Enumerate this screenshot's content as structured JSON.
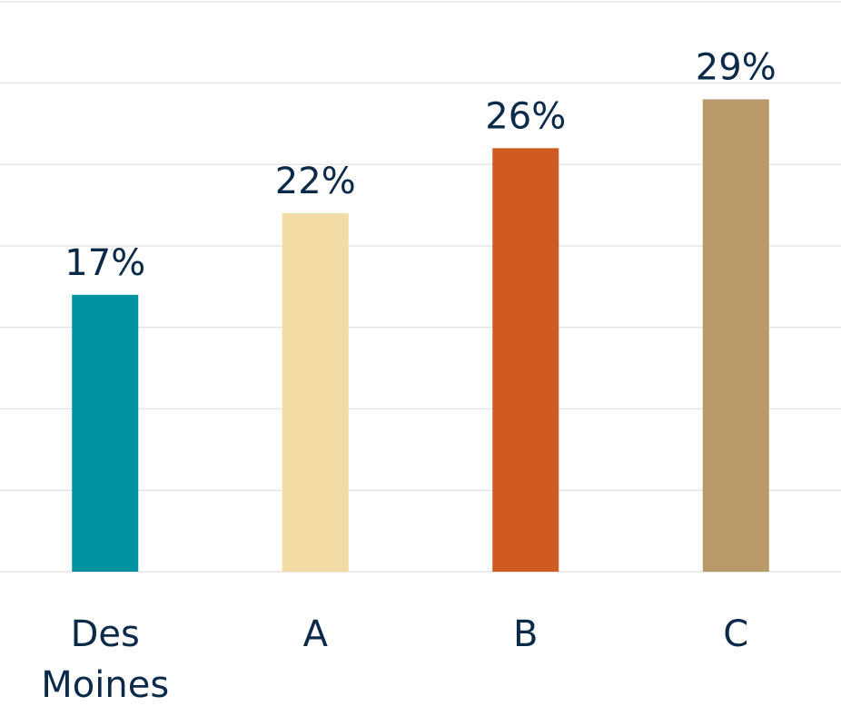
{
  "chart_data": {
    "type": "bar",
    "categories": [
      "Des Moines",
      "A",
      "B",
      "C"
    ],
    "category_lines": [
      [
        "Des",
        "Moines"
      ],
      [
        "A"
      ],
      [
        "B"
      ],
      [
        "C"
      ]
    ],
    "values": [
      17,
      22,
      26,
      29
    ],
    "value_labels": [
      "17%",
      "22%",
      "26%",
      "29%"
    ],
    "colors": [
      "#0092a0",
      "#f3dba5",
      "#cf5a22",
      "#b9986a"
    ],
    "ylim": [
      0,
      35
    ],
    "grid": true,
    "legend": "none",
    "title": "",
    "xlabel": "",
    "ylabel": ""
  }
}
